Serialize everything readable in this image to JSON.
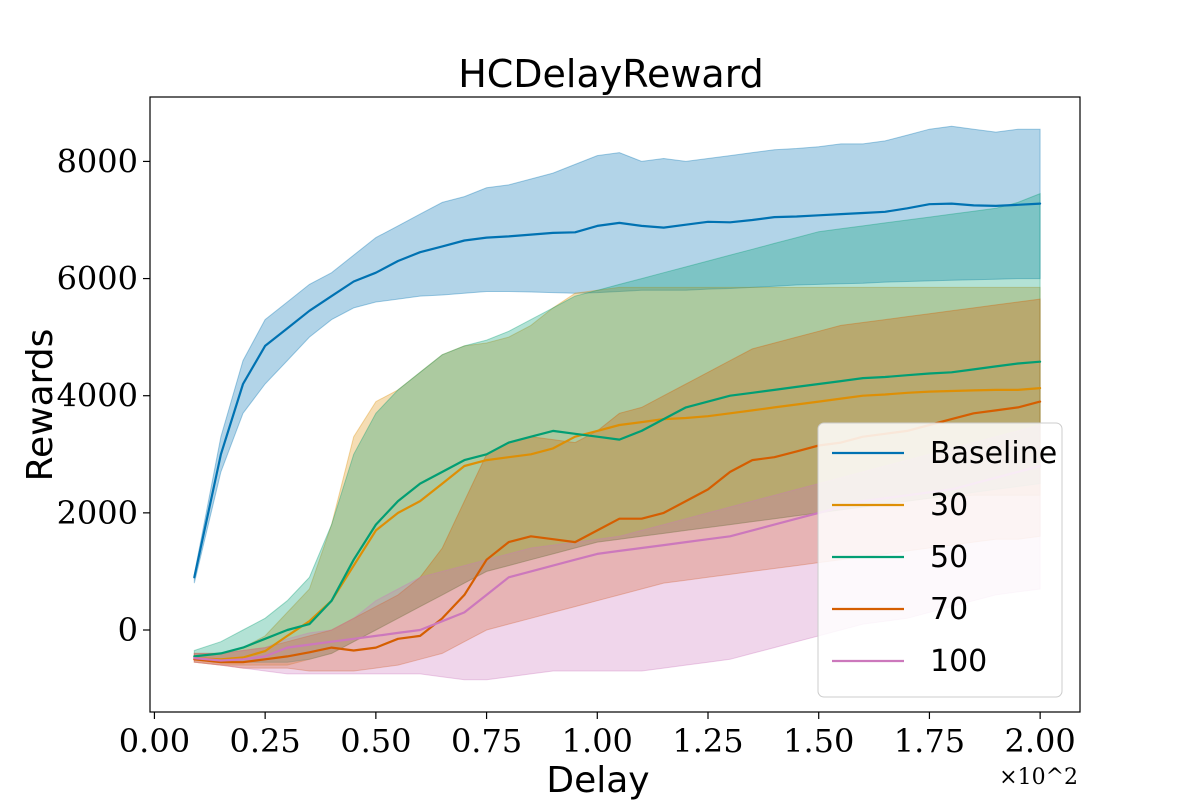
{
  "chart_data": {
    "type": "line",
    "title": "HCDelayReward",
    "xlabel": "Delay",
    "ylabel": "Rewards",
    "x_multiplier_label": "×10^2",
    "xlim": [
      -0.01,
      2.09
    ],
    "ylim": [
      -1400,
      9100
    ],
    "x_ticks": [
      0.0,
      0.25,
      0.5,
      0.75,
      1.0,
      1.25,
      1.5,
      1.75,
      2.0
    ],
    "x_tick_labels": [
      "0.00",
      "0.25",
      "0.50",
      "0.75",
      "1.00",
      "1.25",
      "1.50",
      "1.75",
      "2.00"
    ],
    "y_ticks": [
      0,
      2000,
      4000,
      6000,
      8000
    ],
    "y_tick_labels": [
      "0",
      "2000",
      "4000",
      "6000",
      "8000"
    ],
    "grid": false,
    "legend_position": "lower-right",
    "x": [
      0.09,
      0.15,
      0.2,
      0.25,
      0.3,
      0.35,
      0.4,
      0.45,
      0.5,
      0.55,
      0.6,
      0.65,
      0.7,
      0.75,
      0.8,
      0.85,
      0.9,
      0.95,
      1.0,
      1.05,
      1.1,
      1.15,
      1.2,
      1.25,
      1.3,
      1.35,
      1.4,
      1.45,
      1.5,
      1.55,
      1.6,
      1.65,
      1.7,
      1.75,
      1.8,
      1.85,
      1.9,
      1.95,
      2.0
    ],
    "series": [
      {
        "name": "Baseline",
        "color": "#0072b2",
        "mean": [
          900,
          3000,
          4200,
          4850,
          5150,
          5450,
          5700,
          5950,
          6100,
          6300,
          6450,
          6550,
          6650,
          6700,
          6720,
          6750,
          6780,
          6790,
          6900,
          6950,
          6900,
          6870,
          6920,
          6970,
          6960,
          7000,
          7050,
          7060,
          7080,
          7100,
          7120,
          7140,
          7200,
          7270,
          7280,
          7250,
          7240,
          7260,
          7280
        ],
        "lower": [
          800,
          2700,
          3700,
          4200,
          4600,
          5000,
          5300,
          5500,
          5600,
          5650,
          5700,
          5720,
          5750,
          5780,
          5780,
          5770,
          5760,
          5750,
          5760,
          5780,
          5800,
          5800,
          5800,
          5820,
          5830,
          5850,
          5870,
          5890,
          5900,
          5910,
          5920,
          5940,
          5950,
          5960,
          5970,
          5980,
          5990,
          6000,
          6000
        ],
        "upper": [
          950,
          3300,
          4600,
          5300,
          5600,
          5900,
          6100,
          6400,
          6700,
          6900,
          7100,
          7300,
          7400,
          7550,
          7600,
          7700,
          7800,
          7950,
          8100,
          8150,
          8000,
          8050,
          8000,
          8050,
          8100,
          8150,
          8200,
          8220,
          8250,
          8300,
          8300,
          8350,
          8450,
          8550,
          8600,
          8550,
          8500,
          8550,
          8550
        ]
      },
      {
        "name": "30",
        "color": "#de8f05",
        "mean": [
          -480,
          -500,
          -470,
          -360,
          -100,
          150,
          500,
          1100,
          1700,
          2000,
          2200,
          2500,
          2800,
          2900,
          2950,
          3000,
          3100,
          3300,
          3400,
          3500,
          3550,
          3600,
          3620,
          3650,
          3700,
          3750,
          3800,
          3850,
          3900,
          3950,
          4000,
          4020,
          4050,
          4070,
          4080,
          4090,
          4100,
          4100,
          4130
        ],
        "lower": [
          -550,
          -600,
          -600,
          -600,
          -600,
          -500,
          -400,
          -200,
          0,
          200,
          400,
          600,
          800,
          1000,
          1100,
          1200,
          1300,
          1400,
          1500,
          1550,
          1600,
          1650,
          1700,
          1750,
          1800,
          1850,
          1900,
          1950,
          2000,
          2050,
          2100,
          2150,
          2200,
          2250,
          2280,
          2300,
          2300,
          2300,
          2300
        ],
        "upper": [
          -400,
          -400,
          -300,
          -100,
          300,
          700,
          1800,
          3300,
          3900,
          4100,
          4400,
          4700,
          4850,
          4900,
          5000,
          5200,
          5500,
          5750,
          5800,
          5850,
          5850,
          5850,
          5850,
          5850,
          5850,
          5850,
          5850,
          5850,
          5850,
          5850,
          5850,
          5850,
          5850,
          5850,
          5850,
          5850,
          5850,
          5850,
          5850
        ]
      },
      {
        "name": "50",
        "color": "#029e73",
        "mean": [
          -450,
          -400,
          -300,
          -150,
          0,
          100,
          500,
          1200,
          1800,
          2200,
          2500,
          2700,
          2900,
          3000,
          3200,
          3300,
          3400,
          3350,
          3300,
          3250,
          3400,
          3600,
          3800,
          3900,
          4000,
          4050,
          4100,
          4150,
          4200,
          4250,
          4300,
          4320,
          4350,
          4380,
          4400,
          4450,
          4500,
          4550,
          4580
        ],
        "lower": [
          -500,
          -550,
          -550,
          -550,
          -550,
          -500,
          -400,
          -200,
          0,
          200,
          400,
          600,
          800,
          1000,
          1100,
          1200,
          1300,
          1400,
          1500,
          1550,
          1600,
          1650,
          1700,
          1750,
          1800,
          1850,
          1900,
          1950,
          2000,
          2050,
          2100,
          2150,
          2200,
          2250,
          2300,
          2350,
          2400,
          2450,
          2500
        ],
        "upper": [
          -350,
          -200,
          0,
          200,
          500,
          900,
          1800,
          3000,
          3700,
          4100,
          4400,
          4700,
          4850,
          4950,
          5100,
          5300,
          5500,
          5700,
          5800,
          5900,
          6000,
          6100,
          6200,
          6300,
          6400,
          6500,
          6600,
          6700,
          6800,
          6850,
          6900,
          6950,
          7000,
          7050,
          7100,
          7150,
          7200,
          7300,
          7450
        ]
      },
      {
        "name": "70",
        "color": "#d55e00",
        "mean": [
          -500,
          -550,
          -550,
          -500,
          -450,
          -380,
          -300,
          -350,
          -300,
          -150,
          -100,
          200,
          600,
          1200,
          1500,
          1600,
          1550,
          1500,
          1700,
          1900,
          1900,
          2000,
          2200,
          2400,
          2700,
          2900,
          2950,
          3050,
          3150,
          3200,
          3300,
          3350,
          3400,
          3500,
          3600,
          3700,
          3750,
          3800,
          3900
        ],
        "lower": [
          -550,
          -600,
          -650,
          -650,
          -650,
          -700,
          -700,
          -700,
          -650,
          -600,
          -500,
          -400,
          -200,
          0,
          100,
          200,
          300,
          400,
          500,
          600,
          700,
          800,
          850,
          900,
          950,
          1000,
          1050,
          1100,
          1150,
          1200,
          1250,
          1300,
          1350,
          1400,
          1450,
          1500,
          1550,
          1550,
          1600
        ],
        "upper": [
          -400,
          -400,
          -350,
          -300,
          -200,
          -100,
          0,
          200,
          400,
          600,
          900,
          1400,
          2200,
          3000,
          3200,
          3300,
          3250,
          3200,
          3400,
          3700,
          3800,
          4000,
          4200,
          4400,
          4600,
          4800,
          4900,
          5000,
          5100,
          5200,
          5250,
          5300,
          5350,
          5400,
          5450,
          5500,
          5550,
          5600,
          5650
        ]
      },
      {
        "name": "100",
        "color": "#cc78bc",
        "mean": [
          -480,
          -520,
          -500,
          -450,
          -300,
          -250,
          -200,
          -150,
          -100,
          -50,
          0,
          150,
          300,
          600,
          900,
          1000,
          1100,
          1200,
          1300,
          1350,
          1400,
          1450,
          1500,
          1550,
          1600,
          1700,
          1800,
          1900,
          2000,
          2100,
          2200,
          2250,
          2300,
          2350,
          2400,
          2500,
          2600,
          2700,
          2800
        ],
        "lower": [
          -550,
          -600,
          -650,
          -700,
          -750,
          -750,
          -750,
          -750,
          -750,
          -750,
          -750,
          -800,
          -850,
          -850,
          -800,
          -750,
          -700,
          -700,
          -700,
          -700,
          -700,
          -650,
          -600,
          -550,
          -500,
          -400,
          -300,
          -200,
          -100,
          0,
          100,
          150,
          200,
          300,
          400,
          500,
          600,
          650,
          700
        ],
        "upper": [
          -400,
          -400,
          -350,
          -300,
          -150,
          -50,
          0,
          200,
          500,
          700,
          900,
          1000,
          1100,
          1200,
          1300,
          1400,
          1450,
          1500,
          1550,
          1600,
          1700,
          1800,
          1900,
          2000,
          2100,
          2200,
          2300,
          2400,
          2500,
          2600,
          2700,
          2800,
          2900,
          3000,
          3100,
          3200,
          3300,
          3400,
          3500
        ]
      }
    ]
  }
}
